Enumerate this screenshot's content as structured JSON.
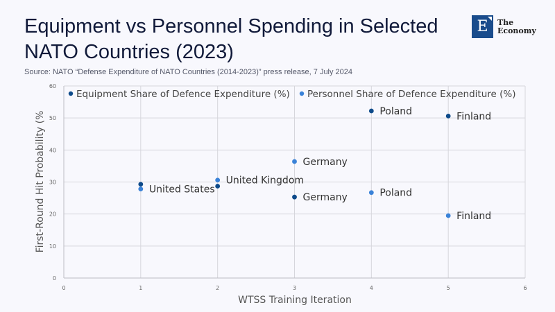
{
  "header": {
    "title": "Equipment vs Personnel Spending in Selected NATO Countries (2023)",
    "source": "Source: NATO “Defense Expenditure of NATO Countries (2014-2023)” press release, 7 July 2024"
  },
  "logo": {
    "letter": "E",
    "line1": "The",
    "line2": "Economy",
    "color": "#1a4c8c"
  },
  "chart_data": {
    "type": "scatter",
    "title": "Equipment vs Personnel Spending in Selected NATO Countries (2023)",
    "xlabel": "WTSS Training Iteration",
    "ylabel": "First-Round Hit Probability (%",
    "xlim": [
      0,
      6
    ],
    "ylim": [
      0,
      60
    ],
    "xticks": [
      0,
      1,
      2,
      3,
      4,
      5,
      6
    ],
    "yticks": [
      0,
      10,
      20,
      30,
      40,
      50,
      60
    ],
    "grid": true,
    "legend_position": "top",
    "series": [
      {
        "name": "Equipment Share of Defence Expenditure (%)",
        "color": "#0d4a8a",
        "points": [
          {
            "x": 1,
            "y": 29.3,
            "label": "United States",
            "show_label": false
          },
          {
            "x": 2,
            "y": 28.7,
            "label": "United Kingdom",
            "show_label": false
          },
          {
            "x": 3,
            "y": 25.3,
            "label": "Germany",
            "show_label": true
          },
          {
            "x": 4,
            "y": 52.2,
            "label": "Poland",
            "show_label": true
          },
          {
            "x": 5,
            "y": 50.6,
            "label": "Finland",
            "show_label": true
          }
        ]
      },
      {
        "name": "Personnel Share of Defence Expenditure (%)",
        "color": "#3a82d8",
        "points": [
          {
            "x": 1,
            "y": 27.8,
            "label": "United States",
            "show_label": true
          },
          {
            "x": 2,
            "y": 30.6,
            "label": "United Kingdom",
            "show_label": true
          },
          {
            "x": 3,
            "y": 36.4,
            "label": "Germany",
            "show_label": true
          },
          {
            "x": 4,
            "y": 26.7,
            "label": "Poland",
            "show_label": true
          },
          {
            "x": 5,
            "y": 19.5,
            "label": "Finland",
            "show_label": true
          }
        ]
      }
    ]
  }
}
